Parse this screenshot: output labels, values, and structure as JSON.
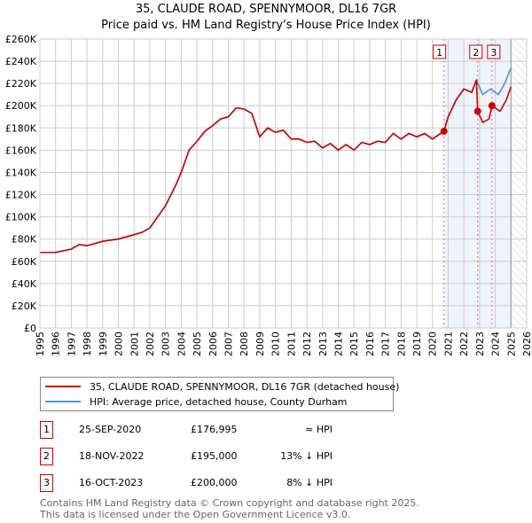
{
  "chart_data": {
    "type": "line",
    "title": "35, CLAUDE ROAD, SPENNYMOOR, DL16 7GR",
    "subtitle": "Price paid vs. HM Land Registry's House Price Index (HPI)",
    "xlim": [
      1995,
      2026
    ],
    "ylim": [
      0,
      260000
    ],
    "x_ticks": [
      "1995",
      "1996",
      "1997",
      "1998",
      "1999",
      "2000",
      "2001",
      "2002",
      "2003",
      "2004",
      "2005",
      "2006",
      "2007",
      "2008",
      "2009",
      "2010",
      "2011",
      "2012",
      "2013",
      "2014",
      "2015",
      "2016",
      "2017",
      "2018",
      "2019",
      "2020",
      "2021",
      "2022",
      "2023",
      "2024",
      "2025",
      "2026"
    ],
    "y_ticks": [
      "£0",
      "£20K",
      "£40K",
      "£60K",
      "£80K",
      "£100K",
      "£120K",
      "£140K",
      "£160K",
      "£180K",
      "£200K",
      "£220K",
      "£240K",
      "£260K"
    ],
    "grid": true,
    "series": [
      {
        "name": "35, CLAUDE ROAD, SPENNYMOOR, DL16 7GR (detached house)",
        "color": "#cc0000",
        "x": [
          1995,
          1996,
          1997,
          1997.5,
          1998,
          1999,
          2000,
          2001,
          2001.5,
          2002,
          2003,
          2003.7,
          2004,
          2004.5,
          2005,
          2005.5,
          2006,
          2006.5,
          2007,
          2007.5,
          2008,
          2008.5,
          2009,
          2009.5,
          2010,
          2010.5,
          2011,
          2011.5,
          2012,
          2012.5,
          2013,
          2013.5,
          2014,
          2014.5,
          2015,
          2015.5,
          2016,
          2016.5,
          2017,
          2017.5,
          2018,
          2018.5,
          2019,
          2019.5,
          2020,
          2020.73,
          2021,
          2021.5,
          2022,
          2022.5,
          2022.8,
          2022.88,
          2023.2,
          2023.6,
          2023.79,
          2024.3,
          2024.7,
          2025
        ],
        "y": [
          68,
          68,
          71,
          75,
          74,
          78,
          80,
          84,
          86,
          90,
          110,
          130,
          140,
          160,
          168,
          177,
          182,
          188,
          190,
          198,
          197,
          193,
          172,
          180,
          176,
          178,
          170,
          170,
          167,
          168,
          162,
          166,
          160,
          165,
          160,
          167,
          165,
          168,
          167,
          175,
          170,
          175,
          172,
          175,
          170,
          177,
          190,
          205,
          215,
          212,
          223,
          195,
          185,
          188,
          200,
          195,
          205,
          217
        ]
      },
      {
        "name": "HPI: Average price, detached house, County Durham",
        "color": "#5b8fd6",
        "x": [
          1995,
          1996,
          1997,
          1997.5,
          1998,
          1999,
          2000,
          2001,
          2001.5,
          2002,
          2003,
          2003.7,
          2004,
          2004.5,
          2005,
          2005.5,
          2006,
          2006.5,
          2007,
          2007.5,
          2008,
          2008.5,
          2009,
          2009.5,
          2010,
          2010.5,
          2011,
          2011.5,
          2012,
          2012.5,
          2013,
          2013.5,
          2014,
          2014.5,
          2015,
          2015.5,
          2016,
          2016.5,
          2017,
          2017.5,
          2018,
          2018.5,
          2019,
          2019.5,
          2020,
          2020.73,
          2021,
          2021.5,
          2022,
          2022.5,
          2022.8,
          2023.2,
          2023.7,
          2024.2,
          2024.6,
          2025
        ],
        "y": [
          68,
          68,
          71,
          75,
          74,
          78,
          80,
          84,
          86,
          90,
          110,
          130,
          140,
          160,
          168,
          177,
          182,
          188,
          190,
          198,
          197,
          193,
          172,
          180,
          176,
          178,
          170,
          170,
          167,
          168,
          162,
          166,
          160,
          165,
          160,
          167,
          165,
          168,
          167,
          175,
          170,
          175,
          172,
          175,
          170,
          177,
          190,
          205,
          215,
          212,
          223,
          210,
          215,
          210,
          220,
          234
        ]
      }
    ],
    "sales": [
      {
        "id": "1",
        "x": 2020.73,
        "price": 176995,
        "date": "25-SEP-2020",
        "price_label": "£176,995",
        "hpi": "≈ HPI"
      },
      {
        "id": "2",
        "x": 2022.88,
        "price": 195000,
        "date": "18-NOV-2022",
        "price_label": "£195,000",
        "hpi": "13% ↓ HPI"
      },
      {
        "id": "3",
        "x": 2023.79,
        "price": 200000,
        "date": "16-OCT-2023",
        "price_label": "£200,000",
        "hpi": "8% ↓ HPI"
      }
    ],
    "legend_placement": "below"
  },
  "footer": {
    "line1": "Contains HM Land Registry data © Crown copyright and database right 2025.",
    "line2": "This data is licensed under the Open Government Licence v3.0."
  }
}
